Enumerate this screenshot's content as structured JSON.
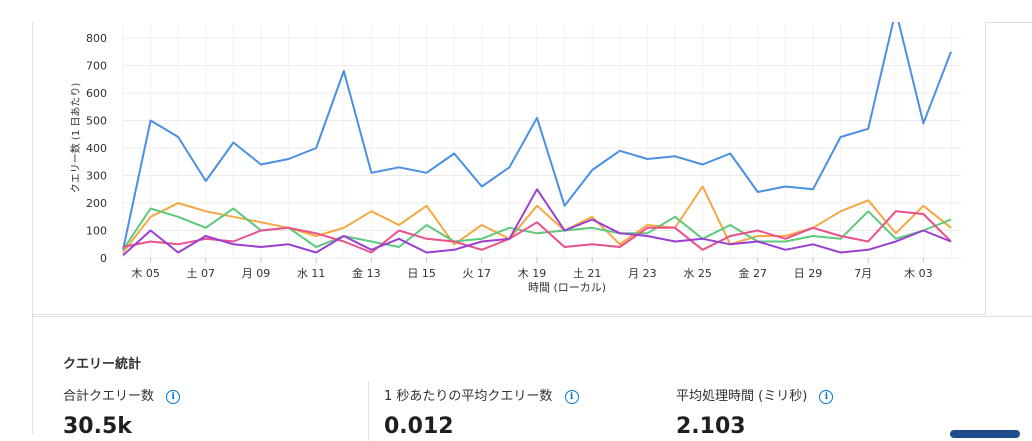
{
  "chart_data": {
    "type": "line",
    "xlabel": "時間 (ローカル)",
    "ylabel": "クエリー数 (1 日あたり)",
    "ylim": [
      0,
      800
    ],
    "yticks": [
      0,
      100,
      200,
      300,
      400,
      500,
      600,
      700,
      800
    ],
    "grid": true,
    "x_tick_labels": [
      "木 05",
      "土 07",
      "月 09",
      "水 11",
      "金 13",
      "日 15",
      "火 17",
      "木 19",
      "土 21",
      "月 23",
      "水 25",
      "金 27",
      "日 29",
      "7月",
      "木 03"
    ],
    "x_tick_index": [
      1,
      3,
      5,
      7,
      9,
      11,
      13,
      15,
      17,
      19,
      21,
      23,
      25,
      27,
      29
    ],
    "n_points": 31,
    "series": [
      {
        "color": "#4a90e2",
        "values": [
          30,
          500,
          440,
          280,
          420,
          340,
          360,
          400,
          680,
          310,
          330,
          310,
          380,
          260,
          330,
          510,
          190,
          320,
          390,
          360,
          370,
          340,
          380,
          240,
          260,
          250,
          440,
          470,
          900,
          490,
          750
        ]
      },
      {
        "color": "#f5a742",
        "values": [
          20,
          150,
          200,
          170,
          150,
          130,
          110,
          80,
          110,
          170,
          120,
          190,
          50,
          120,
          70,
          190,
          100,
          150,
          50,
          120,
          110,
          260,
          50,
          80,
          80,
          110,
          170,
          210,
          90,
          190,
          110
        ]
      },
      {
        "color": "#5cc97b",
        "values": [
          30,
          180,
          150,
          110,
          180,
          100,
          110,
          40,
          80,
          60,
          40,
          120,
          60,
          70,
          110,
          90,
          100,
          110,
          90,
          90,
          150,
          70,
          120,
          60,
          60,
          80,
          70,
          170,
          70,
          100,
          140
        ]
      },
      {
        "color": "#e8508e",
        "values": [
          40,
          60,
          50,
          70,
          60,
          100,
          110,
          90,
          60,
          20,
          100,
          70,
          60,
          30,
          70,
          130,
          40,
          50,
          40,
          110,
          110,
          30,
          80,
          100,
          70,
          110,
          80,
          60,
          170,
          160,
          60
        ]
      },
      {
        "color": "#9b3fd0",
        "values": [
          10,
          100,
          20,
          80,
          50,
          40,
          50,
          20,
          80,
          30,
          70,
          20,
          30,
          60,
          70,
          250,
          100,
          140,
          90,
          80,
          60,
          70,
          50,
          60,
          30,
          50,
          20,
          30,
          60,
          100,
          60
        ]
      }
    ]
  },
  "stats": {
    "title": "クエリー統計",
    "items": [
      {
        "label": "合計クエリー数",
        "value": "30.5k",
        "icon": "info-icon"
      },
      {
        "label": "1 秒あたりの平均クエリー数",
        "value": "0.012",
        "icon": "info-icon"
      },
      {
        "label": "平均処理時間 (ミリ秒)",
        "value": "2.103",
        "icon": "info-icon"
      }
    ]
  }
}
